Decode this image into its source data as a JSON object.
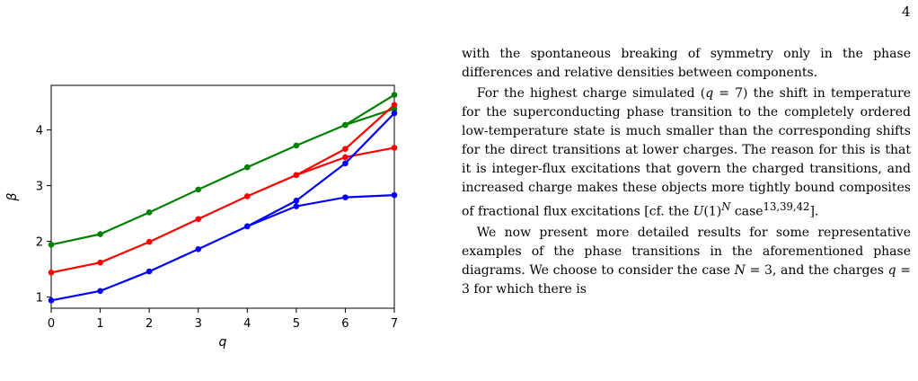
{
  "page": {
    "number": "4"
  },
  "chart_data": {
    "type": "line",
    "xlabel": "q",
    "ylabel": "β",
    "xlim": [
      0,
      7
    ],
    "ylim": [
      0.8,
      4.8
    ],
    "xticks": [
      0,
      1,
      2,
      3,
      4,
      5,
      6,
      7
    ],
    "yticks": [
      1,
      2,
      3,
      4
    ],
    "grid": false,
    "series": [
      {
        "color": "#008000",
        "points": [
          [
            0,
            1.94
          ],
          [
            1,
            2.13
          ],
          [
            2,
            2.52
          ],
          [
            3,
            2.93
          ],
          [
            4,
            3.33
          ],
          [
            5,
            3.72
          ],
          [
            6,
            4.09
          ],
          [
            7,
            4.38
          ]
        ]
      },
      {
        "color": "#008000",
        "points": [
          [
            6,
            4.09
          ],
          [
            7,
            4.63
          ]
        ]
      },
      {
        "color": "#ff0000",
        "points": [
          [
            0,
            1.44
          ],
          [
            1,
            1.62
          ],
          [
            2,
            1.99
          ],
          [
            3,
            2.4
          ],
          [
            4,
            2.81
          ],
          [
            5,
            3.19
          ],
          [
            6,
            3.51
          ],
          [
            7,
            3.68
          ]
        ]
      },
      {
        "color": "#ff0000",
        "points": [
          [
            5,
            3.19
          ],
          [
            6,
            3.66
          ],
          [
            7,
            4.45
          ]
        ]
      },
      {
        "color": "#0000ff",
        "points": [
          [
            0,
            0.94
          ],
          [
            1,
            1.11
          ],
          [
            2,
            1.46
          ],
          [
            3,
            1.86
          ],
          [
            4,
            2.27
          ],
          [
            5,
            2.63
          ],
          [
            6,
            2.79
          ],
          [
            7,
            2.83
          ]
        ]
      },
      {
        "color": "#0000ff",
        "points": [
          [
            4,
            2.27
          ],
          [
            5,
            2.73
          ],
          [
            6,
            3.4
          ],
          [
            7,
            4.3
          ]
        ]
      }
    ]
  },
  "text": {
    "p1": "with the spontaneous breaking of symmetry only in the phase differences and relative densities between components.",
    "p2_a": "For the highest charge simulated (",
    "p2_math": "q",
    "p2_b": " = 7) the shift in temperature for the superconducting phase transition to the completely ordered low-temperature state is much smaller than the corresponding shifts for the direct transitions at lower charges. The reason for this is that it is integer-flux excitations that govern the charged transitions, and increased charge makes these objects more tightly bound composites of fractional flux excitations [cf. the ",
    "p2_math2": "U",
    "p2_c": "(1)",
    "p2_sup1": "N",
    "p2_d": " case",
    "p2_sup2": "13,39,42",
    "p2_e": "].",
    "p3_a": "We now present more detailed results for some representative examples of the phase transitions in the aforementioned phase diagrams. We choose to consider the case ",
    "p3_math1": "N",
    "p3_b": " = 3, and the charges ",
    "p3_math2": "q",
    "p3_c": " = 3 for which there is"
  }
}
